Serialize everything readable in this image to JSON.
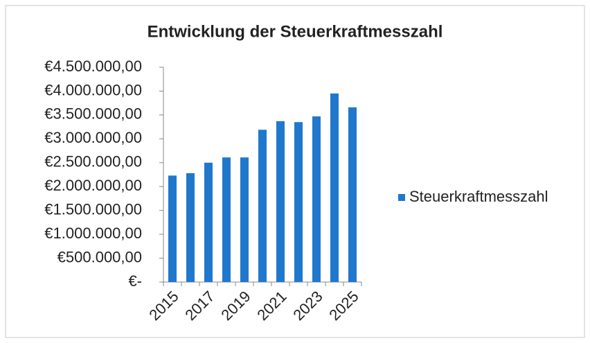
{
  "chart_data": {
    "type": "bar",
    "title": "Entwicklung der Steuerkraftmesszahl",
    "categories": [
      "2015",
      null,
      "2017",
      null,
      "2019",
      null,
      "2021",
      null,
      "2023",
      null,
      "2025"
    ],
    "series": [
      {
        "name": "Steuerkraftmesszahl",
        "color": "#1f78cc",
        "values": [
          2230000,
          2280000,
          2500000,
          2610000,
          2610000,
          3190000,
          3370000,
          3350000,
          3470000,
          3950000,
          3660000
        ]
      }
    ],
    "ylim": [
      0,
      4500000
    ],
    "yticks": [
      {
        "value": 0,
        "label": "€-"
      },
      {
        "value": 500000,
        "label": "€500.000,00"
      },
      {
        "value": 1000000,
        "label": "€1.000.000,00"
      },
      {
        "value": 1500000,
        "label": "€1.500.000,00"
      },
      {
        "value": 2000000,
        "label": "€2.000.000,00"
      },
      {
        "value": 2500000,
        "label": "€2.500.000,00"
      },
      {
        "value": 3000000,
        "label": "€3.000.000,00"
      },
      {
        "value": 3500000,
        "label": "€3.500.000,00"
      },
      {
        "value": 4000000,
        "label": "€4.000.000,00"
      },
      {
        "value": 4500000,
        "label": "€4.500.000,00"
      }
    ],
    "grid": false,
    "legend": "right"
  }
}
